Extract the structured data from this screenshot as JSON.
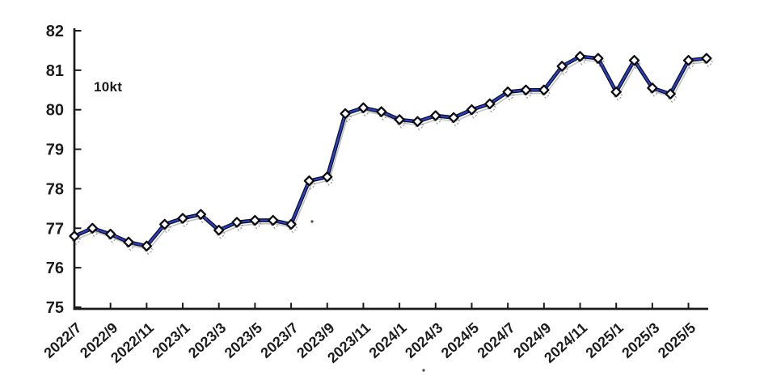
{
  "chart_data": {
    "type": "line",
    "title": "",
    "unit_label": "10kt",
    "legend": "none",
    "grid": false,
    "x": [
      "2022/7",
      "2022/8",
      "2022/9",
      "2022/10",
      "2022/11",
      "2022/12",
      "2023/1",
      "2023/2",
      "2023/3",
      "2023/4",
      "2023/5",
      "2023/6",
      "2023/7",
      "2023/8",
      "2023/9",
      "2023/10",
      "2023/11",
      "2023/12",
      "2024/1",
      "2024/2",
      "2024/3",
      "2024/4",
      "2024/5",
      "2024/6",
      "2024/7",
      "2024/8",
      "2024/9",
      "2024/10",
      "2024/11",
      "2024/12",
      "2025/1",
      "2025/2",
      "2025/3",
      "2025/4",
      "2025/5",
      "2025/6"
    ],
    "values": [
      76.8,
      77.0,
      76.85,
      76.65,
      76.55,
      77.1,
      77.25,
      77.35,
      76.95,
      77.15,
      77.2,
      77.2,
      77.1,
      78.2,
      78.3,
      79.9,
      80.05,
      79.95,
      79.75,
      79.7,
      79.85,
      79.8,
      80.0,
      80.15,
      80.45,
      80.5,
      80.5,
      81.1,
      81.35,
      81.3,
      80.45,
      81.25,
      80.55,
      80.4,
      81.25,
      81.3
    ],
    "xtick_labels": [
      "2022/7",
      "2022/9",
      "2022/11",
      "2023/1",
      "2023/3",
      "2023/5",
      "2023/7",
      "2023/9",
      "2023/11",
      "2024/1",
      "2024/3",
      "2024/5",
      "2024/7",
      "2024/9",
      "2024/11",
      "2025/1",
      "2025/3",
      "2025/5"
    ],
    "xtick_step": 2,
    "yticks": [
      75,
      76,
      77,
      78,
      79,
      80,
      81,
      82
    ],
    "ylim": [
      75,
      82
    ],
    "colors": {
      "line": "#2a3fd0",
      "line_edge": "#10131f",
      "marker_fill": "#ffffff",
      "marker_stroke": "#0c0c14",
      "ghost": "#8f8f8f",
      "axis": "#1a1a1a",
      "background": "#ffffff"
    },
    "marker": "diamond"
  },
  "artifacts": {
    "specks": [
      [
        386,
        274
      ],
      [
        524,
        458
      ]
    ]
  }
}
